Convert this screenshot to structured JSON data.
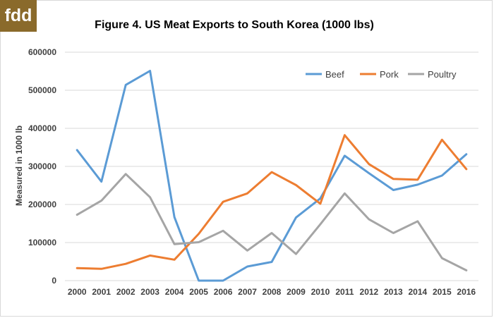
{
  "logo": {
    "text": "fdd"
  },
  "colors": {
    "logo_bg": "#8a6a2b",
    "beef": "#5b9bd5",
    "pork": "#ed7d31",
    "poultry": "#a5a5a5",
    "grid": "#d9d9d9",
    "text": "#404040"
  },
  "chart_data": {
    "type": "line",
    "title": "Figure 4. US Meat Exports to South Korea (1000 lbs)",
    "xlabel": "",
    "ylabel": "Measured in 1000 lb",
    "ylim": [
      0,
      600000
    ],
    "yticks": [
      0,
      100000,
      200000,
      300000,
      400000,
      500000,
      600000
    ],
    "ytick_labels": [
      "0",
      "100000",
      "200000",
      "300000",
      "400000",
      "500000",
      "600000"
    ],
    "categories": [
      "2000",
      "2001",
      "2002",
      "2003",
      "2004",
      "2005",
      "2006",
      "2007",
      "2008",
      "2009",
      "2010",
      "2011",
      "2012",
      "2013",
      "2014",
      "2015",
      "2016"
    ],
    "grid": true,
    "legend_position": "top-right",
    "series": [
      {
        "name": "Beef",
        "color": "#5b9bd5",
        "values": [
          343000,
          260000,
          514000,
          551000,
          167000,
          0,
          0,
          37000,
          49000,
          166000,
          216000,
          328000,
          282000,
          238000,
          252000,
          276000,
          332000
        ]
      },
      {
        "name": "Pork",
        "color": "#ed7d31",
        "values": [
          33000,
          31000,
          44000,
          66000,
          55000,
          123000,
          207000,
          229000,
          285000,
          251000,
          202000,
          382000,
          306000,
          267000,
          265000,
          370000,
          293000
        ]
      },
      {
        "name": "Poultry",
        "color": "#a5a5a5",
        "values": [
          173000,
          210000,
          280000,
          219000,
          96000,
          101000,
          131000,
          79000,
          125000,
          70000,
          148000,
          229000,
          161000,
          125000,
          156000,
          59000,
          27000
        ]
      }
    ]
  }
}
